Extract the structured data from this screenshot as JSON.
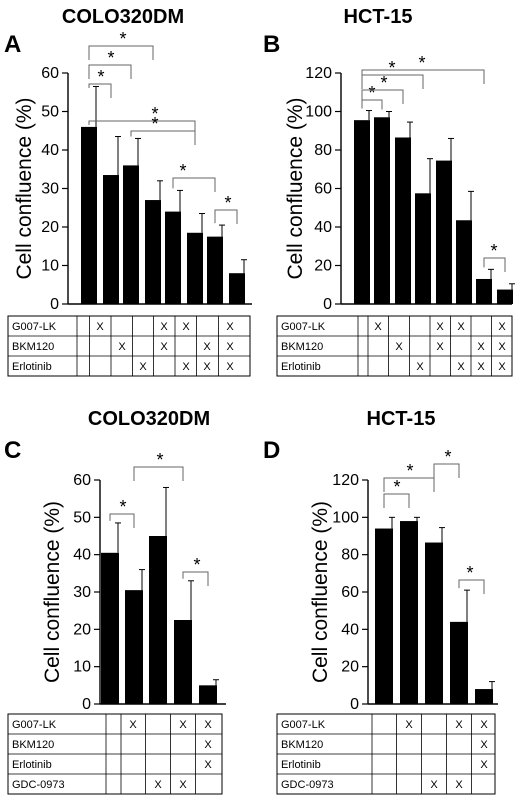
{
  "figure": {
    "ylabel": "Cell confluence (%)",
    "sig_symbol": "*"
  },
  "chart_data": [
    {
      "type": "bar",
      "panel": "A",
      "title": "COLO320DM",
      "ylabel": "Cell confluence (%)",
      "ylim": [
        0,
        60
      ],
      "yticks": [
        0,
        10,
        20,
        30,
        40,
        50,
        60
      ],
      "values": [
        46,
        33.5,
        36,
        27,
        24,
        18.5,
        17.5,
        8
      ],
      "errors": [
        10.5,
        10,
        7,
        5,
        5.5,
        5,
        3,
        3.5
      ],
      "table_rows": [
        {
          "label": "G007-LK",
          "marks": [
            "",
            "X",
            "",
            "",
            "X",
            "X",
            "",
            "X"
          ]
        },
        {
          "label": "BKM120",
          "marks": [
            "",
            "",
            "X",
            "",
            "X",
            "",
            "X",
            "X"
          ]
        },
        {
          "label": "Erlotinib",
          "marks": [
            "",
            "",
            "",
            "X",
            "",
            "X",
            "X",
            "X"
          ]
        }
      ],
      "significance": [
        {
          "from": 1,
          "to": 2
        },
        {
          "from": 1,
          "to": 3
        },
        {
          "from": 1,
          "to": 4
        },
        {
          "from": 1,
          "to": 6
        },
        {
          "from": 3,
          "to": 6
        },
        {
          "from": 5,
          "to": 7
        },
        {
          "from": 7,
          "to": 8
        }
      ]
    },
    {
      "type": "bar",
      "panel": "B",
      "title": "HCT-15",
      "ylabel": "Cell confluence (%)",
      "ylim": [
        0,
        120
      ],
      "yticks": [
        0,
        20,
        40,
        60,
        80,
        100,
        120
      ],
      "values": [
        95.5,
        97,
        86.5,
        57.5,
        74.5,
        43.5,
        13,
        7.5
      ],
      "errors": [
        5,
        3,
        8,
        18,
        11.5,
        15,
        5,
        3
      ],
      "table_rows": [
        {
          "label": "G007-LK",
          "marks": [
            "",
            "X",
            "",
            "",
            "X",
            "X",
            "",
            "X"
          ]
        },
        {
          "label": "BKM120",
          "marks": [
            "",
            "",
            "X",
            "",
            "X",
            "",
            "X",
            "X"
          ]
        },
        {
          "label": "Erlotinib",
          "marks": [
            "",
            "",
            "",
            "X",
            "",
            "X",
            "X",
            "X"
          ]
        }
      ],
      "significance": [
        {
          "from": 1,
          "to": 2
        },
        {
          "from": 1,
          "to": 3
        },
        {
          "from": 1,
          "to": 4
        },
        {
          "from": 1,
          "to": 7
        },
        {
          "from": 7,
          "to": 8
        }
      ]
    },
    {
      "type": "bar",
      "panel": "C",
      "title": "COLO320DM",
      "ylabel": "Cell confluence (%)",
      "ylim": [
        0,
        60
      ],
      "yticks": [
        0,
        10,
        20,
        30,
        40,
        50,
        60
      ],
      "values": [
        40.5,
        30.5,
        45,
        22.5,
        5
      ],
      "errors": [
        8,
        5.5,
        13,
        10.5,
        1.5
      ],
      "table_rows": [
        {
          "label": "G007-LK",
          "marks": [
            "",
            "X",
            "",
            "X",
            "X"
          ]
        },
        {
          "label": "BKM120",
          "marks": [
            "",
            "",
            "",
            "",
            "X"
          ]
        },
        {
          "label": "Erlotinib",
          "marks": [
            "",
            "",
            "",
            "",
            "X"
          ]
        },
        {
          "label": "GDC-0973",
          "marks": [
            "",
            "",
            "X",
            "X",
            ""
          ]
        }
      ],
      "significance": [
        {
          "from": 1,
          "to": 2
        },
        {
          "from": 2,
          "to": 4
        },
        {
          "from": 4,
          "to": 5
        }
      ]
    },
    {
      "type": "bar",
      "panel": "D",
      "title": "HCT-15",
      "ylabel": "Cell confluence (%)",
      "ylim": [
        0,
        120
      ],
      "yticks": [
        0,
        20,
        40,
        60,
        80,
        100,
        120
      ],
      "values": [
        94,
        98,
        86.5,
        44,
        8
      ],
      "errors": [
        6,
        2,
        8,
        17,
        4
      ],
      "table_rows": [
        {
          "label": "G007-LK",
          "marks": [
            "",
            "X",
            "",
            "X",
            "X"
          ]
        },
        {
          "label": "BKM120",
          "marks": [
            "",
            "",
            "",
            "",
            "X"
          ]
        },
        {
          "label": "Erlotinib",
          "marks": [
            "",
            "",
            "",
            "",
            "X"
          ]
        },
        {
          "label": "GDC-0973",
          "marks": [
            "",
            "",
            "X",
            "X",
            ""
          ]
        }
      ],
      "significance": [
        {
          "from": 1,
          "to": 2
        },
        {
          "from": 1,
          "to": 3
        },
        {
          "from": 3,
          "to": 4
        },
        {
          "from": 4,
          "to": 5
        }
      ]
    }
  ]
}
